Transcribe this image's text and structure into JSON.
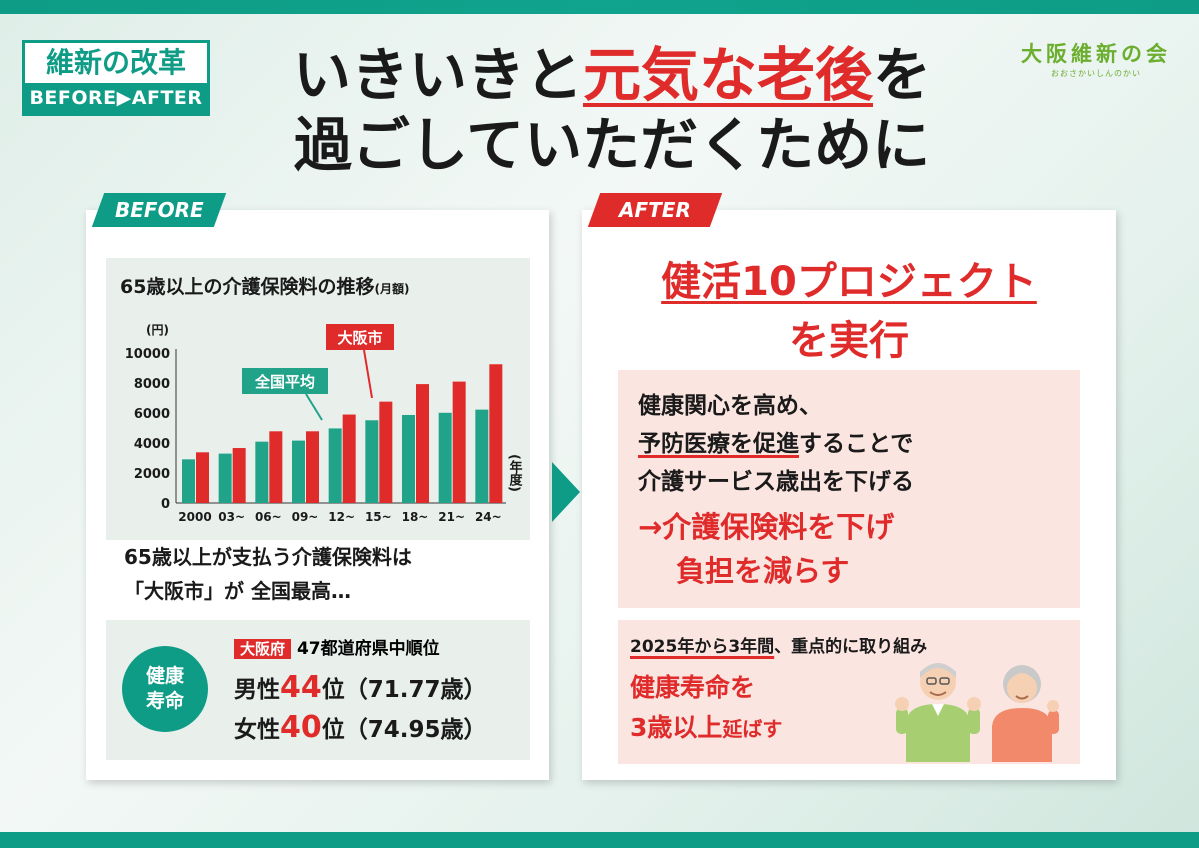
{
  "logo": {
    "line1": "維新の改革",
    "line2": "BEFORE▶AFTER"
  },
  "party": {
    "name": "大阪維新の会",
    "kana": "おおさかいしんのかい"
  },
  "headline": {
    "pre": "いきいきと",
    "emph": "元気な老後",
    "post": "を",
    "line2": "過ごしていただくために"
  },
  "before": {
    "tag": "BEFORE",
    "chart_title": "65歳以上の介護保険料の推移",
    "chart_title_sub": "(月額)",
    "callout_osaka": "大阪市",
    "callout_national": "全国平均",
    "text_line1": "65歳以上が支払う介護保険料は",
    "text_line2": "「大阪市」が 全国最高…",
    "life": {
      "circle_line1": "健康",
      "circle_line2": "寿命",
      "badge": "大阪府",
      "header": "47都道府県中順位",
      "male_label": "男性",
      "male_rank": "44",
      "male_suffix": "位（71.77歳）",
      "female_label": "女性",
      "female_rank": "40",
      "female_suffix": "位（74.95歳）"
    }
  },
  "after": {
    "tag": "AFTER",
    "project_line1": "健活10プロジェクト",
    "project_line2": "を実行",
    "p1_line1": "健康関心を高め、",
    "p1_line2_ul": "予防医療を促進",
    "p1_line2_rest": "することで",
    "p1_line3": "介護サービス歳出を下げる",
    "p1_red1": "→介護保険料を下げ",
    "p1_red2": "負担を減らす",
    "p2_ul": "2025年から3年間",
    "p2_rest": "、重点的に取り組み",
    "p2_red1": "健康寿命を",
    "p2_red2a": "3歳以上",
    "p2_red2b": "延ばす"
  },
  "chart_data": {
    "type": "bar",
    "title": "65歳以上の介護保険料の推移(月額)",
    "ylabel": "(円)",
    "xlabel": "(年度)",
    "categories": [
      "2000",
      "03~",
      "06~",
      "09~",
      "12~",
      "15~",
      "18~",
      "21~",
      "24~"
    ],
    "yticks": [
      "0",
      "2000",
      "4000",
      "6000",
      "8000",
      "10000"
    ],
    "ylim": [
      0,
      10000
    ],
    "series": [
      {
        "name": "全国平均",
        "color": "#21a38a",
        "values": [
          2911,
          3293,
          4090,
          4160,
          4972,
          5514,
          5869,
          6014,
          6225
        ]
      },
      {
        "name": "大阪市",
        "color": "#e02b2b",
        "values": [
          3379,
          3664,
          4780,
          4780,
          5897,
          6758,
          7927,
          8094,
          9249
        ]
      }
    ]
  },
  "colors": {
    "accent": "#0e9c86",
    "red": "#e02b2b",
    "pink": "#fbe5e1"
  }
}
